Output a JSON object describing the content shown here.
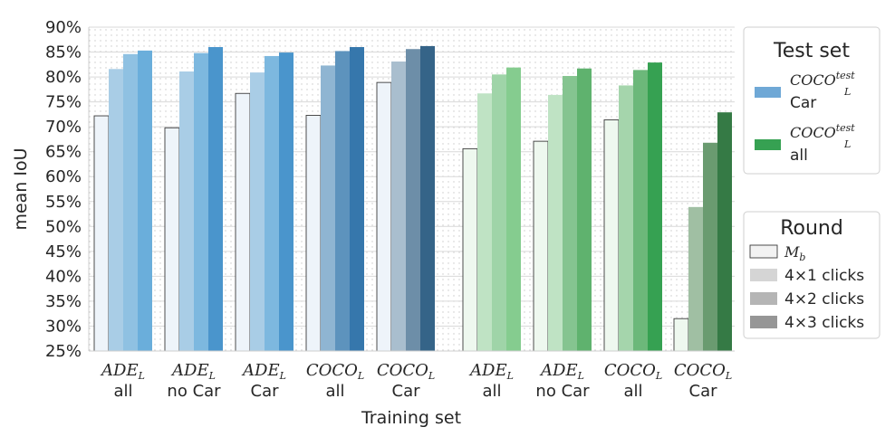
{
  "chart_data": {
    "type": "bar",
    "ylabel": "mean IoU",
    "xlabel": "Training set",
    "ylim": [
      25,
      90
    ],
    "yticks": [
      "25%",
      "30%",
      "35%",
      "40%",
      "45%",
      "50%",
      "55%",
      "60%",
      "65%",
      "70%",
      "75%",
      "80%",
      "85%",
      "90%"
    ],
    "grid": true,
    "groups": [
      {
        "top": "ADE",
        "sub": "L",
        "bottom": "all",
        "test": "car",
        "values": [
          72.2,
          81.6,
          84.6,
          85.3
        ]
      },
      {
        "top": "ADE",
        "sub": "L",
        "bottom": "no Car",
        "test": "car",
        "values": [
          69.8,
          81.1,
          84.8,
          86.0
        ]
      },
      {
        "top": "ADE",
        "sub": "L",
        "bottom": "Car",
        "test": "car",
        "values": [
          76.7,
          80.9,
          84.2,
          84.9
        ]
      },
      {
        "top": "COCO",
        "sub": "L",
        "bottom": "all",
        "test": "car",
        "values": [
          72.3,
          82.3,
          85.2,
          86.0
        ]
      },
      {
        "top": "COCO",
        "sub": "L",
        "bottom": "Car",
        "test": "car",
        "values": [
          78.9,
          83.1,
          85.6,
          86.2
        ]
      },
      {
        "top": "ADE",
        "sub": "L",
        "bottom": "all",
        "test": "all",
        "values": [
          65.6,
          76.7,
          80.5,
          81.9
        ]
      },
      {
        "top": "ADE",
        "sub": "L",
        "bottom": "no Car",
        "test": "all",
        "values": [
          67.1,
          76.4,
          80.2,
          81.7
        ]
      },
      {
        "top": "COCO",
        "sub": "L",
        "bottom": "all",
        "test": "all",
        "values": [
          71.4,
          78.3,
          81.4,
          82.9
        ]
      },
      {
        "top": "COCO",
        "sub": "L",
        "bottom": "Car",
        "test": "all",
        "values": [
          31.5,
          53.9,
          66.8,
          72.9
        ]
      }
    ],
    "series": [
      {
        "name": "M",
        "sub": "b"
      },
      {
        "name": "4×1 clicks"
      },
      {
        "name": "4×2 clicks"
      },
      {
        "name": "4×3 clicks"
      }
    ],
    "legend_test": {
      "title": "Test set",
      "items": [
        {
          "main": "COCO",
          "sub": "L",
          "sup": "test",
          "line2": "Car",
          "color": "#6fa8d6"
        },
        {
          "main": "COCO",
          "sub": "L",
          "sup": "test",
          "line2": "all",
          "color": "#36a152"
        }
      ]
    },
    "legend_round": {
      "title": "Round",
      "colors": [
        "#f2f2f2",
        "#d5d5d5",
        "#b5b5b5",
        "#969696"
      ]
    },
    "palettes": {
      "car": [
        [
          "#eef4fa",
          "#a9cde6",
          "#8fc1e2",
          "#6aaedb"
        ],
        [
          "#eef4fa",
          "#a9cde6",
          "#7db8df",
          "#4a95cc"
        ],
        [
          "#eef4fa",
          "#a9cde6",
          "#7db8df",
          "#4a95cc"
        ],
        [
          "#eef4fa",
          "#8fb5d2",
          "#5d93bd",
          "#3677ac"
        ],
        [
          "#eef4fa",
          "#a9bece",
          "#6d8ea8",
          "#356488"
        ]
      ],
      "all": [
        [
          "#eef8ef",
          "#bfe3c4",
          "#9fd4a8",
          "#85cc8f"
        ],
        [
          "#eef8ef",
          "#bfe3c4",
          "#85c490",
          "#5fb26e"
        ],
        [
          "#eef8ef",
          "#a5d5ac",
          "#6cb87a",
          "#36a152"
        ],
        [
          "#eef8ef",
          "#a0bfa3",
          "#6a9b70",
          "#357a45"
        ]
      ]
    }
  }
}
